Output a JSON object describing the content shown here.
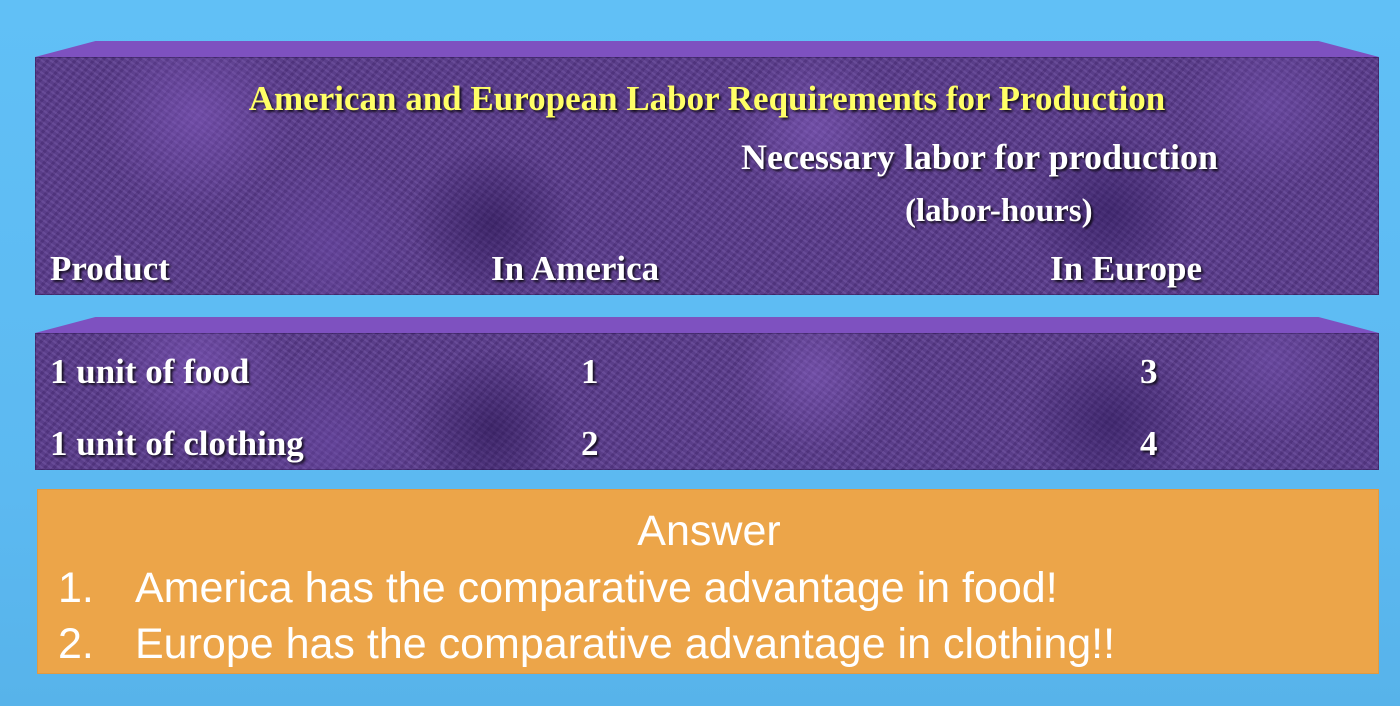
{
  "table": {
    "title": "American and European Labor Requirements for Production",
    "header": {
      "group_label_line1": "Necessary labor for production",
      "group_label_line2": "(labor-hours)",
      "columns": [
        "Product",
        "In America",
        "In Europe"
      ]
    },
    "rows": [
      {
        "product": "1 unit of food",
        "america": "1",
        "europe": "3"
      },
      {
        "product": "1 unit of clothing",
        "america": "2",
        "europe": "4"
      }
    ],
    "colors": {
      "panel": "#5a3a8e",
      "title": "#ffff66",
      "text": "#ffffff"
    }
  },
  "answer": {
    "heading": "Answer",
    "items": [
      {
        "number": "1.",
        "text": "America has the comparative advantage in food!"
      },
      {
        "number": "2.",
        "text": "Europe has the comparative advantage in clothing!!"
      }
    ],
    "color": "#eca549"
  }
}
